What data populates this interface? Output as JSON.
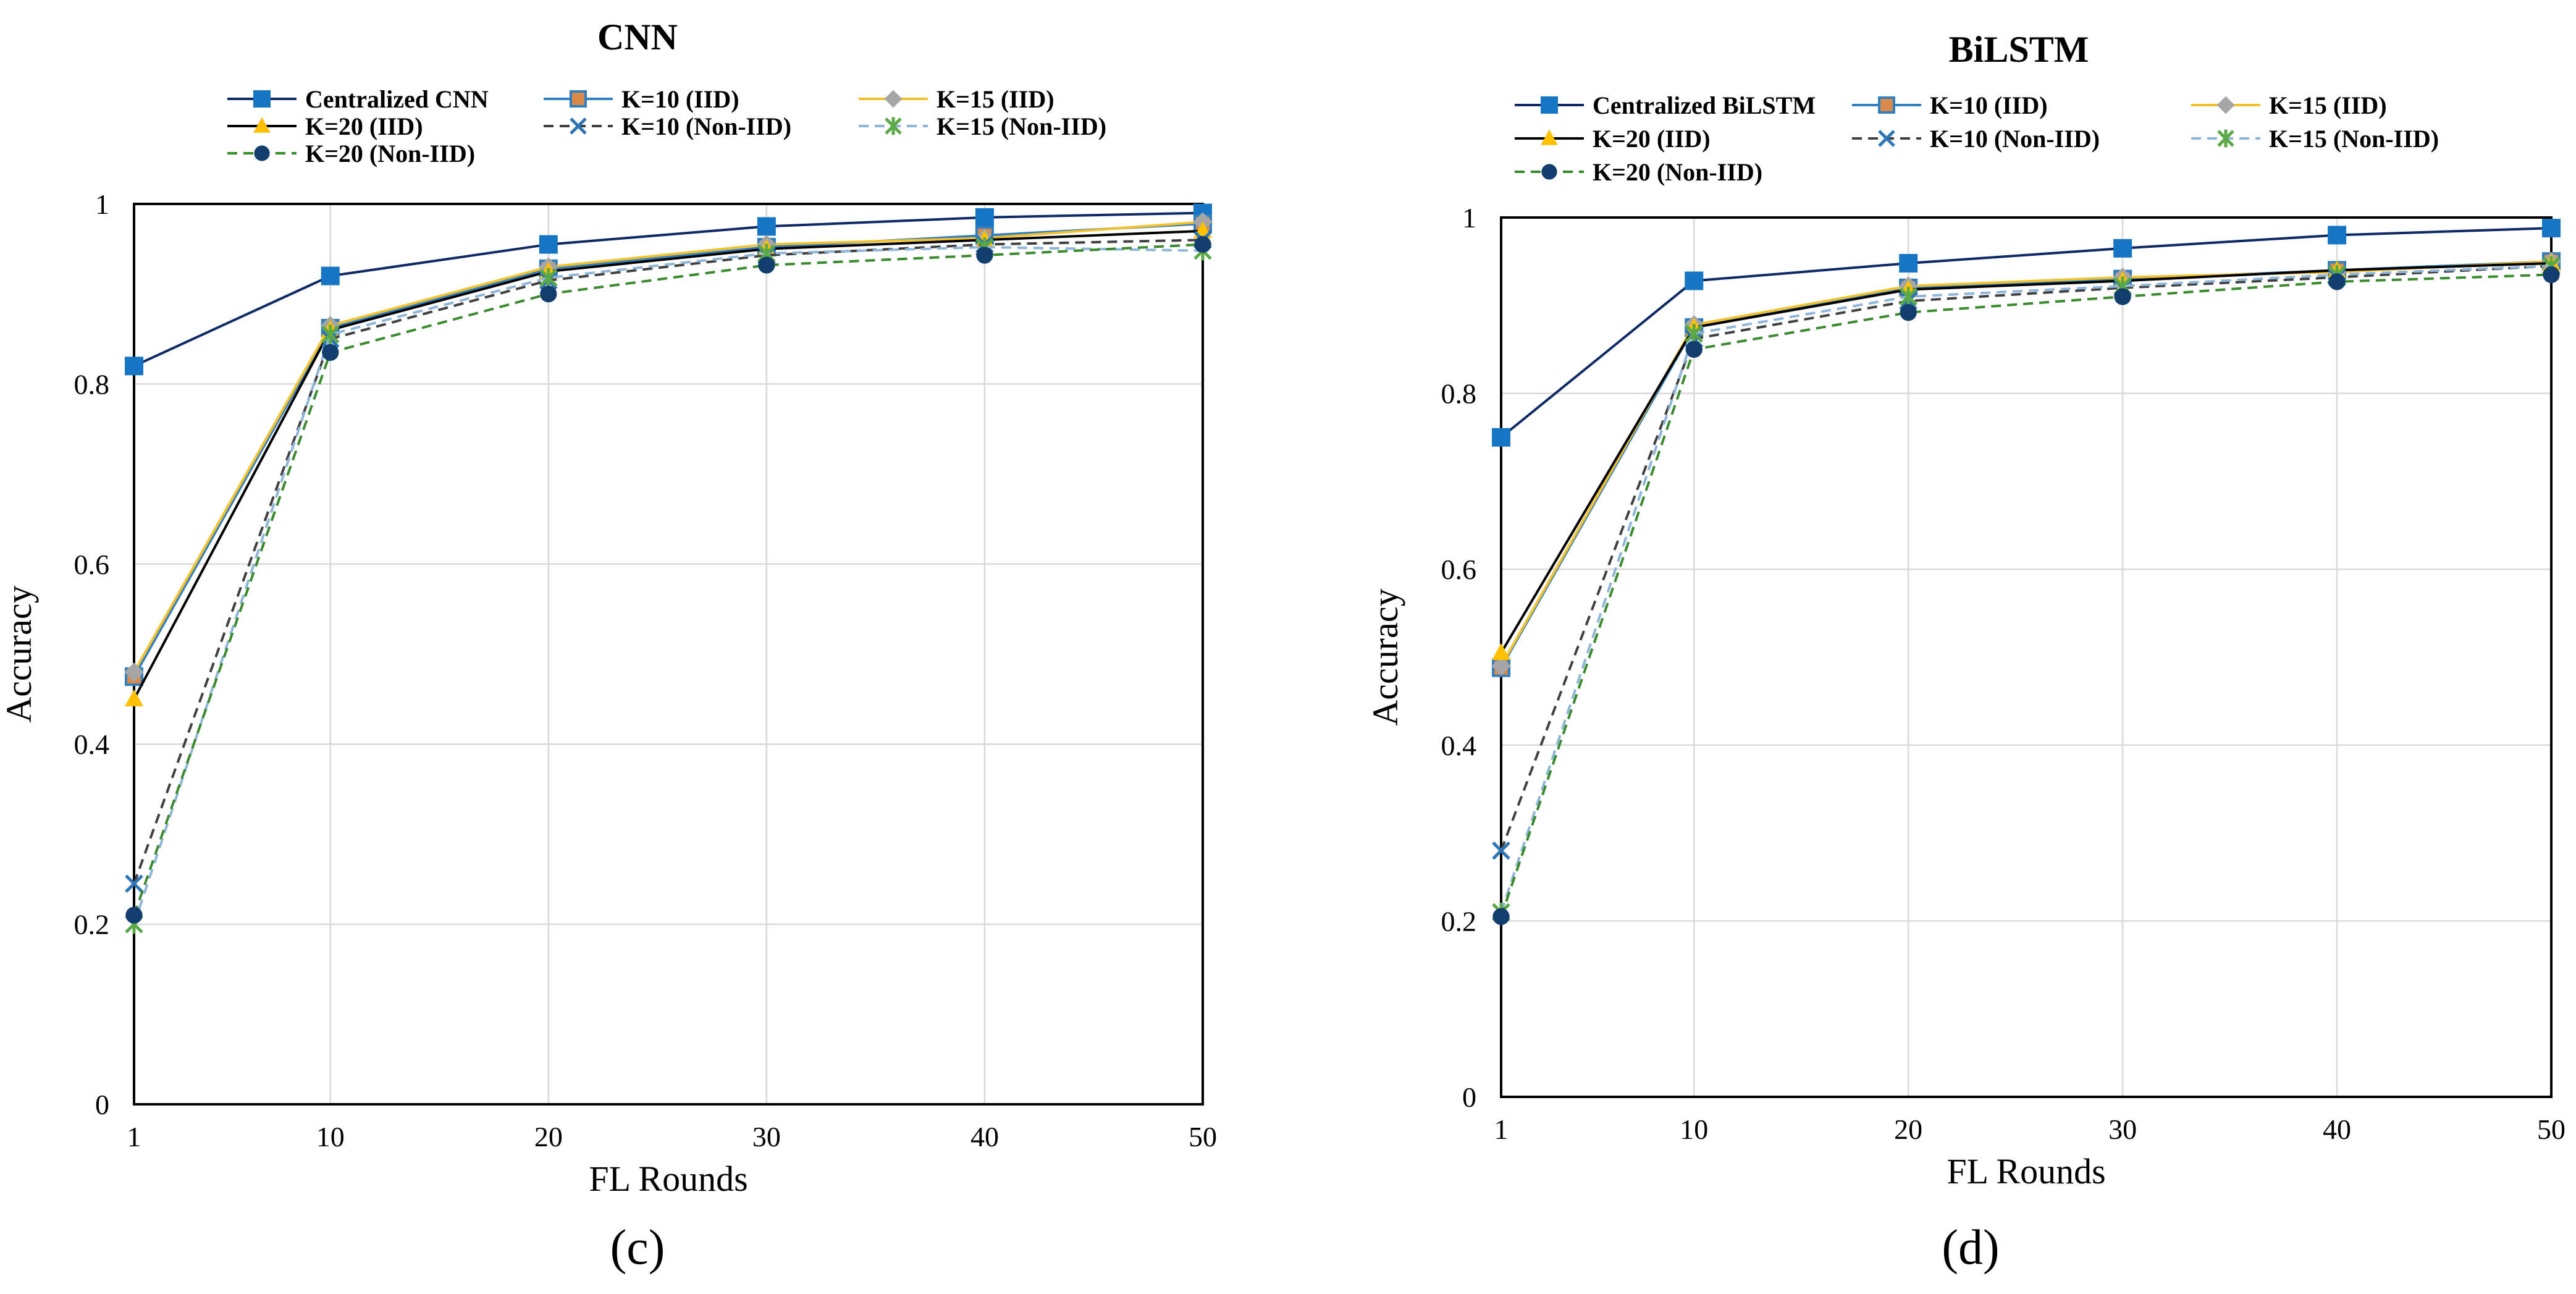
{
  "chart_data": [
    {
      "type": "line",
      "panel_label": "(c)",
      "title": "CNN",
      "xlabel": "FL Rounds",
      "ylabel": "Accuracy",
      "x": [
        1,
        10,
        20,
        30,
        40,
        50
      ],
      "xticks": [
        "1",
        "10",
        "20",
        "30",
        "40",
        "50"
      ],
      "ylim": [
        0,
        1
      ],
      "yticks": [
        "0",
        "0.2",
        "0.4",
        "0.6",
        "0.8",
        "1"
      ],
      "grid": true,
      "legend_position": "top",
      "series": [
        {
          "name": "Centralized CNN",
          "values": [
            0.82,
            0.92,
            0.955,
            0.975,
            0.985,
            0.99
          ],
          "color": "#0e2a66",
          "marker_color": "#1776c4",
          "marker": "square",
          "dash": "solid"
        },
        {
          "name": "K=10 (IID)",
          "values": [
            0.475,
            0.862,
            0.928,
            0.952,
            0.965,
            0.978
          ],
          "color": "#2f7fc1",
          "marker_color": "#d98a4a",
          "marker": "square",
          "dash": "solid"
        },
        {
          "name": "K=15 (IID)",
          "values": [
            0.48,
            0.865,
            0.93,
            0.955,
            0.962,
            0.98
          ],
          "color": "#f2c12e",
          "marker_color": "#a6a6a6",
          "marker": "diamond",
          "dash": "solid"
        },
        {
          "name": "K=20 (IID)",
          "values": [
            0.45,
            0.86,
            0.925,
            0.95,
            0.96,
            0.97
          ],
          "color": "#000000",
          "marker_color": "#ffc000",
          "marker": "triangle",
          "dash": "solid"
        },
        {
          "name": "K=10 (Non-IID)",
          "values": [
            0.245,
            0.85,
            0.915,
            0.943,
            0.955,
            0.96
          ],
          "color": "#404040",
          "marker_color": "#2e75b6",
          "marker": "x",
          "dash": "dashed"
        },
        {
          "name": "K=15 (Non-IID)",
          "values": [
            0.2,
            0.855,
            0.918,
            0.945,
            0.952,
            0.948
          ],
          "color": "#8fb6d9",
          "marker_color": "#5aa846",
          "marker": "star",
          "dash": "dashed"
        },
        {
          "name": "K=20 (Non-IID)",
          "values": [
            0.21,
            0.835,
            0.9,
            0.932,
            0.943,
            0.955
          ],
          "color": "#3a8a2e",
          "marker_color": "#123e6e",
          "marker": "circle",
          "dash": "dashed"
        }
      ]
    },
    {
      "type": "line",
      "panel_label": "(d)",
      "title": "BiLSTM",
      "xlabel": "FL Rounds",
      "ylabel": "Accuracy",
      "x": [
        1,
        10,
        20,
        30,
        40,
        50
      ],
      "xticks": [
        "1",
        "10",
        "20",
        "30",
        "40",
        "50"
      ],
      "ylim": [
        0,
        1
      ],
      "yticks": [
        "0",
        "0.2",
        "0.4",
        "0.6",
        "0.8",
        "1"
      ],
      "grid": true,
      "legend_position": "top",
      "series": [
        {
          "name": "Centralized BiLSTM",
          "values": [
            0.75,
            0.928,
            0.948,
            0.965,
            0.98,
            0.988
          ],
          "color": "#0e2a66",
          "marker_color": "#1776c4",
          "marker": "square",
          "dash": "solid"
        },
        {
          "name": "K=10 (IID)",
          "values": [
            0.488,
            0.875,
            0.92,
            0.93,
            0.94,
            0.95
          ],
          "color": "#2f7fc1",
          "marker_color": "#d98a4a",
          "marker": "square",
          "dash": "solid"
        },
        {
          "name": "K=15 (IID)",
          "values": [
            0.49,
            0.878,
            0.922,
            0.932,
            0.938,
            0.95
          ],
          "color": "#f2c12e",
          "marker_color": "#a6a6a6",
          "marker": "diamond",
          "dash": "solid"
        },
        {
          "name": "K=20 (IID)",
          "values": [
            0.505,
            0.875,
            0.918,
            0.928,
            0.94,
            0.948
          ],
          "color": "#000000",
          "marker_color": "#ffc000",
          "marker": "triangle",
          "dash": "solid"
        },
        {
          "name": "K=10 (Non-IID)",
          "values": [
            0.28,
            0.862,
            0.905,
            0.92,
            0.932,
            0.945
          ],
          "color": "#404040",
          "marker_color": "#2e75b6",
          "marker": "x",
          "dash": "dashed"
        },
        {
          "name": "K=15 (Non-IID)",
          "values": [
            0.21,
            0.868,
            0.91,
            0.922,
            0.935,
            0.945
          ],
          "color": "#8fb6d9",
          "marker_color": "#5aa846",
          "marker": "star",
          "dash": "dashed"
        },
        {
          "name": "K=20 (Non-IID)",
          "values": [
            0.205,
            0.85,
            0.892,
            0.91,
            0.927,
            0.935
          ],
          "color": "#3a8a2e",
          "marker_color": "#123e6e",
          "marker": "circle",
          "dash": "dashed"
        }
      ]
    }
  ]
}
